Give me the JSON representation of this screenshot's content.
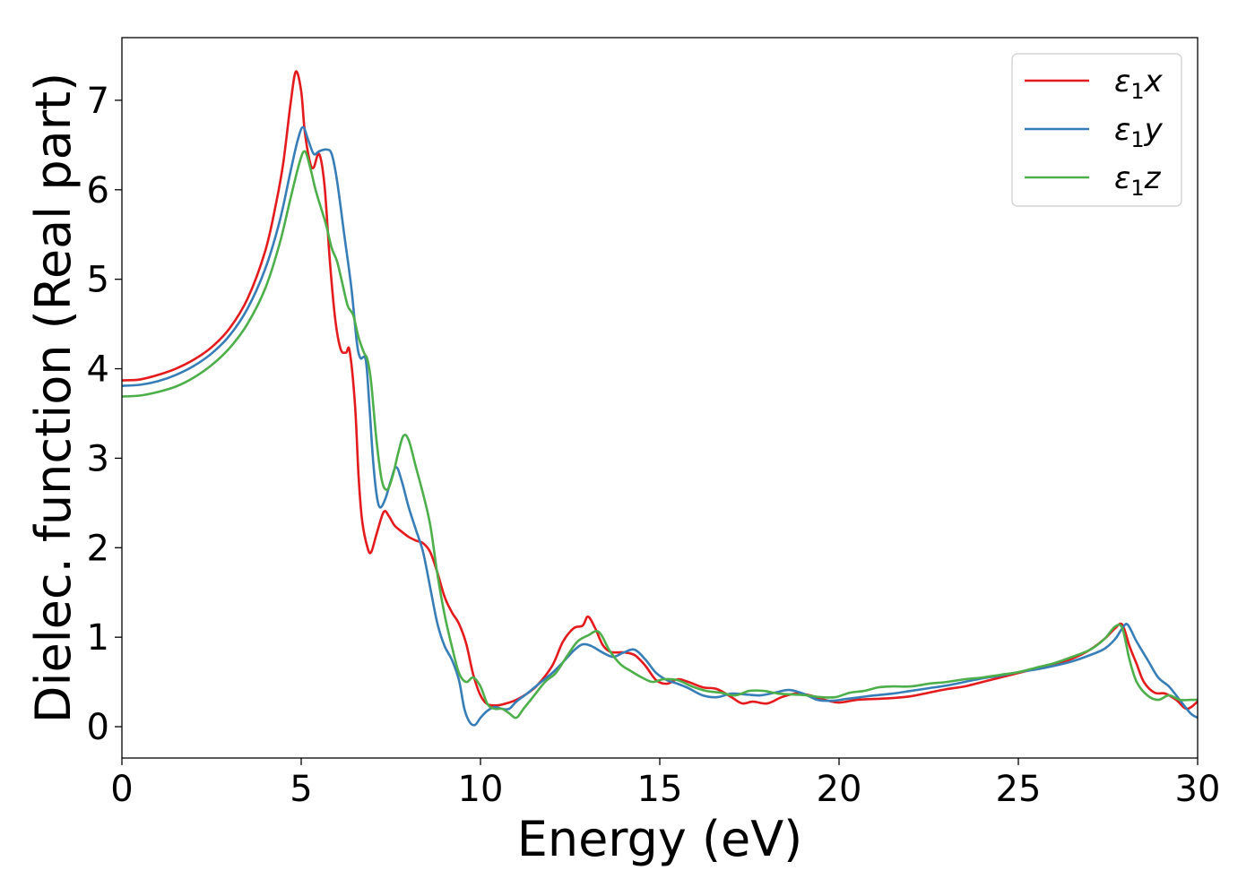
{
  "chart_data": {
    "type": "line",
    "xlabel": "Energy (eV)",
    "ylabel": "Dielec. function (Real part)",
    "xlim": [
      0,
      30
    ],
    "ylim": [
      -0.35,
      7.7
    ],
    "xticks": [
      0,
      5,
      10,
      15,
      20,
      25,
      30
    ],
    "yticks": [
      0,
      1,
      2,
      3,
      4,
      5,
      6,
      7
    ],
    "grid": false,
    "legend_position": "top-right",
    "series": [
      {
        "name": "ε1x",
        "legend_symbol": "ε",
        "legend_subscript": "1",
        "legend_suffix": "x",
        "color": "#e41a1c",
        "points": [
          [
            0,
            3.87
          ],
          [
            0.5,
            3.88
          ],
          [
            1.0,
            3.93
          ],
          [
            1.5,
            4.0
          ],
          [
            2.0,
            4.1
          ],
          [
            2.5,
            4.24
          ],
          [
            3.0,
            4.45
          ],
          [
            3.5,
            4.78
          ],
          [
            4.0,
            5.32
          ],
          [
            4.3,
            5.85
          ],
          [
            4.5,
            6.3
          ],
          [
            4.7,
            6.95
          ],
          [
            4.85,
            7.32
          ],
          [
            5.0,
            7.1
          ],
          [
            5.1,
            6.65
          ],
          [
            5.25,
            6.3
          ],
          [
            5.35,
            6.25
          ],
          [
            5.5,
            6.4
          ],
          [
            5.65,
            6.05
          ],
          [
            5.8,
            5.2
          ],
          [
            5.95,
            4.55
          ],
          [
            6.1,
            4.22
          ],
          [
            6.25,
            4.18
          ],
          [
            6.35,
            4.2
          ],
          [
            6.5,
            3.6
          ],
          [
            6.6,
            2.8
          ],
          [
            6.7,
            2.3
          ],
          [
            6.85,
            2.0
          ],
          [
            6.95,
            1.95
          ],
          [
            7.1,
            2.15
          ],
          [
            7.3,
            2.4
          ],
          [
            7.45,
            2.35
          ],
          [
            7.6,
            2.25
          ],
          [
            7.8,
            2.18
          ],
          [
            8.0,
            2.12
          ],
          [
            8.2,
            2.08
          ],
          [
            8.4,
            2.05
          ],
          [
            8.6,
            1.95
          ],
          [
            8.8,
            1.72
          ],
          [
            9.0,
            1.45
          ],
          [
            9.2,
            1.28
          ],
          [
            9.4,
            1.15
          ],
          [
            9.6,
            0.93
          ],
          [
            9.8,
            0.58
          ],
          [
            10.0,
            0.35
          ],
          [
            10.2,
            0.25
          ],
          [
            10.5,
            0.24
          ],
          [
            10.8,
            0.27
          ],
          [
            11.0,
            0.3
          ],
          [
            11.3,
            0.37
          ],
          [
            11.6,
            0.47
          ],
          [
            12.0,
            0.68
          ],
          [
            12.3,
            0.95
          ],
          [
            12.6,
            1.1
          ],
          [
            12.85,
            1.13
          ],
          [
            13.0,
            1.23
          ],
          [
            13.2,
            1.1
          ],
          [
            13.4,
            0.92
          ],
          [
            13.6,
            0.84
          ],
          [
            13.8,
            0.83
          ],
          [
            14.0,
            0.83
          ],
          [
            14.3,
            0.8
          ],
          [
            14.6,
            0.68
          ],
          [
            14.9,
            0.52
          ],
          [
            15.2,
            0.48
          ],
          [
            15.5,
            0.53
          ],
          [
            15.8,
            0.5
          ],
          [
            16.2,
            0.44
          ],
          [
            16.6,
            0.42
          ],
          [
            17.0,
            0.33
          ],
          [
            17.3,
            0.26
          ],
          [
            17.6,
            0.28
          ],
          [
            18.0,
            0.26
          ],
          [
            18.4,
            0.33
          ],
          [
            18.8,
            0.37
          ],
          [
            19.2,
            0.35
          ],
          [
            19.6,
            0.3
          ],
          [
            20.0,
            0.27
          ],
          [
            20.5,
            0.3
          ],
          [
            21.0,
            0.31
          ],
          [
            21.5,
            0.32
          ],
          [
            22.0,
            0.34
          ],
          [
            22.5,
            0.38
          ],
          [
            23.0,
            0.42
          ],
          [
            23.5,
            0.45
          ],
          [
            24.0,
            0.5
          ],
          [
            24.5,
            0.55
          ],
          [
            25.0,
            0.6
          ],
          [
            25.5,
            0.65
          ],
          [
            26.0,
            0.7
          ],
          [
            26.5,
            0.76
          ],
          [
            27.0,
            0.86
          ],
          [
            27.4,
            0.98
          ],
          [
            27.7,
            1.1
          ],
          [
            27.9,
            1.14
          ],
          [
            28.1,
            0.9
          ],
          [
            28.3,
            0.7
          ],
          [
            28.5,
            0.5
          ],
          [
            28.8,
            0.38
          ],
          [
            29.1,
            0.37
          ],
          [
            29.4,
            0.3
          ],
          [
            29.7,
            0.2
          ],
          [
            30.0,
            0.28
          ]
        ]
      },
      {
        "name": "ε1y",
        "legend_symbol": "ε",
        "legend_subscript": "1",
        "legend_suffix": "y",
        "color": "#377eb8",
        "points": [
          [
            0,
            3.81
          ],
          [
            0.5,
            3.82
          ],
          [
            1.0,
            3.86
          ],
          [
            1.5,
            3.93
          ],
          [
            2.0,
            4.03
          ],
          [
            2.5,
            4.17
          ],
          [
            3.0,
            4.37
          ],
          [
            3.5,
            4.67
          ],
          [
            4.0,
            5.12
          ],
          [
            4.4,
            5.65
          ],
          [
            4.7,
            6.2
          ],
          [
            4.9,
            6.55
          ],
          [
            5.05,
            6.7
          ],
          [
            5.2,
            6.55
          ],
          [
            5.35,
            6.4
          ],
          [
            5.5,
            6.43
          ],
          [
            5.7,
            6.45
          ],
          [
            5.85,
            6.4
          ],
          [
            6.0,
            6.1
          ],
          [
            6.2,
            5.5
          ],
          [
            6.4,
            4.9
          ],
          [
            6.55,
            4.3
          ],
          [
            6.65,
            4.12
          ],
          [
            6.8,
            4.1
          ],
          [
            6.9,
            3.6
          ],
          [
            7.0,
            3.0
          ],
          [
            7.1,
            2.6
          ],
          [
            7.2,
            2.45
          ],
          [
            7.35,
            2.55
          ],
          [
            7.5,
            2.75
          ],
          [
            7.65,
            2.9
          ],
          [
            7.8,
            2.75
          ],
          [
            8.0,
            2.45
          ],
          [
            8.2,
            2.2
          ],
          [
            8.4,
            1.95
          ],
          [
            8.6,
            1.55
          ],
          [
            8.8,
            1.15
          ],
          [
            9.0,
            0.9
          ],
          [
            9.2,
            0.75
          ],
          [
            9.4,
            0.52
          ],
          [
            9.55,
            0.2
          ],
          [
            9.7,
            0.05
          ],
          [
            9.85,
            0.02
          ],
          [
            10.0,
            0.1
          ],
          [
            10.2,
            0.18
          ],
          [
            10.4,
            0.22
          ],
          [
            10.6,
            0.2
          ],
          [
            10.8,
            0.2
          ],
          [
            11.0,
            0.28
          ],
          [
            11.3,
            0.37
          ],
          [
            11.6,
            0.47
          ],
          [
            12.0,
            0.6
          ],
          [
            12.3,
            0.72
          ],
          [
            12.6,
            0.85
          ],
          [
            12.85,
            0.92
          ],
          [
            13.1,
            0.9
          ],
          [
            13.4,
            0.83
          ],
          [
            13.7,
            0.78
          ],
          [
            14.0,
            0.83
          ],
          [
            14.3,
            0.86
          ],
          [
            14.6,
            0.75
          ],
          [
            14.9,
            0.6
          ],
          [
            15.2,
            0.52
          ],
          [
            15.5,
            0.48
          ],
          [
            15.8,
            0.43
          ],
          [
            16.2,
            0.35
          ],
          [
            16.6,
            0.33
          ],
          [
            17.0,
            0.37
          ],
          [
            17.4,
            0.36
          ],
          [
            17.8,
            0.35
          ],
          [
            18.2,
            0.38
          ],
          [
            18.6,
            0.41
          ],
          [
            19.0,
            0.37
          ],
          [
            19.4,
            0.3
          ],
          [
            19.8,
            0.29
          ],
          [
            20.2,
            0.31
          ],
          [
            20.6,
            0.33
          ],
          [
            21.0,
            0.35
          ],
          [
            21.5,
            0.37
          ],
          [
            22.0,
            0.4
          ],
          [
            22.5,
            0.43
          ],
          [
            23.0,
            0.46
          ],
          [
            23.5,
            0.5
          ],
          [
            24.0,
            0.54
          ],
          [
            24.5,
            0.57
          ],
          [
            25.0,
            0.61
          ],
          [
            25.5,
            0.64
          ],
          [
            26.0,
            0.68
          ],
          [
            26.5,
            0.73
          ],
          [
            27.0,
            0.8
          ],
          [
            27.4,
            0.87
          ],
          [
            27.7,
            0.98
          ],
          [
            27.9,
            1.1
          ],
          [
            28.05,
            1.14
          ],
          [
            28.3,
            0.95
          ],
          [
            28.6,
            0.75
          ],
          [
            28.9,
            0.55
          ],
          [
            29.2,
            0.45
          ],
          [
            29.5,
            0.3
          ],
          [
            29.8,
            0.15
          ],
          [
            30.0,
            0.1
          ]
        ]
      },
      {
        "name": "ε1z",
        "legend_symbol": "ε",
        "legend_subscript": "1",
        "legend_suffix": "z",
        "color": "#4daf4a",
        "points": [
          [
            0,
            3.69
          ],
          [
            0.5,
            3.7
          ],
          [
            1.0,
            3.74
          ],
          [
            1.5,
            3.8
          ],
          [
            2.0,
            3.9
          ],
          [
            2.5,
            4.04
          ],
          [
            3.0,
            4.23
          ],
          [
            3.5,
            4.5
          ],
          [
            4.0,
            4.9
          ],
          [
            4.4,
            5.4
          ],
          [
            4.7,
            5.9
          ],
          [
            4.95,
            6.3
          ],
          [
            5.1,
            6.43
          ],
          [
            5.25,
            6.25
          ],
          [
            5.4,
            6.0
          ],
          [
            5.55,
            5.8
          ],
          [
            5.7,
            5.6
          ],
          [
            5.85,
            5.35
          ],
          [
            6.0,
            5.2
          ],
          [
            6.15,
            4.95
          ],
          [
            6.3,
            4.7
          ],
          [
            6.45,
            4.6
          ],
          [
            6.6,
            4.35
          ],
          [
            6.75,
            4.18
          ],
          [
            6.85,
            4.1
          ],
          [
            6.95,
            3.85
          ],
          [
            7.1,
            3.2
          ],
          [
            7.25,
            2.75
          ],
          [
            7.4,
            2.65
          ],
          [
            7.55,
            2.8
          ],
          [
            7.7,
            3.05
          ],
          [
            7.85,
            3.25
          ],
          [
            8.0,
            3.2
          ],
          [
            8.2,
            2.9
          ],
          [
            8.4,
            2.6
          ],
          [
            8.6,
            2.25
          ],
          [
            8.8,
            1.7
          ],
          [
            9.0,
            1.25
          ],
          [
            9.2,
            0.9
          ],
          [
            9.4,
            0.6
          ],
          [
            9.6,
            0.5
          ],
          [
            9.8,
            0.55
          ],
          [
            10.0,
            0.45
          ],
          [
            10.2,
            0.25
          ],
          [
            10.4,
            0.2
          ],
          [
            10.6,
            0.2
          ],
          [
            10.8,
            0.15
          ],
          [
            11.0,
            0.1
          ],
          [
            11.2,
            0.2
          ],
          [
            11.5,
            0.35
          ],
          [
            11.8,
            0.5
          ],
          [
            12.1,
            0.6
          ],
          [
            12.4,
            0.78
          ],
          [
            12.7,
            0.95
          ],
          [
            13.0,
            1.02
          ],
          [
            13.3,
            1.06
          ],
          [
            13.6,
            0.85
          ],
          [
            13.9,
            0.7
          ],
          [
            14.2,
            0.62
          ],
          [
            14.5,
            0.55
          ],
          [
            14.8,
            0.5
          ],
          [
            15.1,
            0.53
          ],
          [
            15.5,
            0.52
          ],
          [
            15.9,
            0.45
          ],
          [
            16.3,
            0.4
          ],
          [
            16.7,
            0.38
          ],
          [
            17.1,
            0.35
          ],
          [
            17.5,
            0.4
          ],
          [
            17.9,
            0.4
          ],
          [
            18.3,
            0.37
          ],
          [
            18.7,
            0.36
          ],
          [
            19.1,
            0.35
          ],
          [
            19.5,
            0.33
          ],
          [
            19.9,
            0.33
          ],
          [
            20.3,
            0.38
          ],
          [
            20.7,
            0.4
          ],
          [
            21.1,
            0.44
          ],
          [
            21.5,
            0.45
          ],
          [
            22.0,
            0.45
          ],
          [
            22.5,
            0.48
          ],
          [
            23.0,
            0.5
          ],
          [
            23.5,
            0.53
          ],
          [
            24.0,
            0.55
          ],
          [
            24.5,
            0.58
          ],
          [
            25.0,
            0.61
          ],
          [
            25.5,
            0.66
          ],
          [
            26.0,
            0.71
          ],
          [
            26.5,
            0.78
          ],
          [
            27.0,
            0.86
          ],
          [
            27.4,
            0.98
          ],
          [
            27.7,
            1.12
          ],
          [
            27.9,
            1.1
          ],
          [
            28.1,
            0.75
          ],
          [
            28.3,
            0.5
          ],
          [
            28.6,
            0.35
          ],
          [
            28.9,
            0.3
          ],
          [
            29.2,
            0.35
          ],
          [
            29.5,
            0.3
          ],
          [
            29.8,
            0.3
          ],
          [
            30.0,
            0.3
          ]
        ]
      }
    ]
  }
}
